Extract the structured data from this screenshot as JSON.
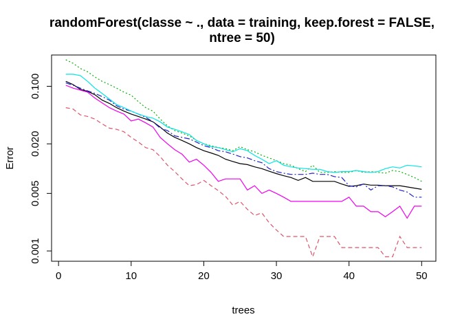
{
  "chart_data": {
    "type": "line",
    "title_lines": [
      "randomForest(classe ~ ., data = training, keep.forest = FALSE,",
      "ntree = 50)"
    ],
    "xlabel": "trees",
    "ylabel": "Error",
    "x_ticks": [
      0,
      10,
      20,
      30,
      40,
      50
    ],
    "x_tick_labels": [
      "0",
      "10",
      "20",
      "30",
      "40",
      "50"
    ],
    "y_ticks": [
      0.001,
      0.005,
      0.02,
      0.1
    ],
    "y_tick_labels": [
      "0.001",
      "0.005",
      "0.020",
      "0.100"
    ],
    "xlim": [
      -0.96,
      51.96
    ],
    "ylim": [
      0.00075,
      0.24
    ],
    "y_scale": "log",
    "grid": false,
    "legend": "none",
    "x": [
      1,
      2,
      3,
      4,
      5,
      6,
      7,
      8,
      9,
      10,
      11,
      12,
      13,
      14,
      15,
      16,
      17,
      18,
      19,
      20,
      21,
      22,
      23,
      24,
      25,
      26,
      27,
      28,
      29,
      30,
      31,
      32,
      33,
      34,
      35,
      36,
      37,
      38,
      39,
      40,
      41,
      42,
      43,
      44,
      45,
      46,
      47,
      48,
      49,
      50
    ],
    "series": [
      {
        "color": "#000000",
        "dash": "solid",
        "values": [
          0.115,
          0.105,
          0.092,
          0.087,
          0.079,
          0.068,
          0.062,
          0.055,
          0.05,
          0.046,
          0.043,
          0.04,
          0.037,
          0.032,
          0.027,
          0.024,
          0.022,
          0.02,
          0.018,
          0.0165,
          0.0155,
          0.0145,
          0.013,
          0.0122,
          0.0115,
          0.0112,
          0.0105,
          0.01,
          0.0093,
          0.0087,
          0.0082,
          0.0078,
          0.0072,
          0.0078,
          0.007,
          0.007,
          0.007,
          0.007,
          0.0065,
          0.0061,
          0.0062,
          0.0065,
          0.0063,
          0.0063,
          0.0062,
          0.0062,
          0.0062,
          0.006,
          0.0058,
          0.0056
        ]
      },
      {
        "color": "#df536b",
        "dash": "6,4",
        "values": [
          0.055,
          0.053,
          0.045,
          0.043,
          0.04,
          0.035,
          0.031,
          0.03,
          0.028,
          0.024,
          0.021,
          0.018,
          0.017,
          0.014,
          0.011,
          0.0092,
          0.0075,
          0.0062,
          0.0064,
          0.0072,
          0.0062,
          0.0054,
          0.0046,
          0.0036,
          0.004,
          0.0032,
          0.0027,
          0.0029,
          0.0022,
          0.0018,
          0.0015,
          0.0015,
          0.0015,
          0.0015,
          0.00085,
          0.0015,
          0.0015,
          0.0015,
          0.0011,
          0.0011,
          0.0011,
          0.0011,
          0.0011,
          0.0011,
          0.00085,
          0.00085,
          0.0015,
          0.0011,
          0.0011,
          0.0011
        ]
      },
      {
        "color": "#00b000",
        "dash": "2,3",
        "values": [
          0.21,
          0.19,
          0.165,
          0.15,
          0.13,
          0.115,
          0.105,
          0.095,
          0.085,
          0.078,
          0.065,
          0.055,
          0.05,
          0.04,
          0.033,
          0.029,
          0.027,
          0.025,
          0.022,
          0.02,
          0.019,
          0.018,
          0.0175,
          0.0165,
          0.0185,
          0.017,
          0.016,
          0.0145,
          0.0135,
          0.0125,
          0.0115,
          0.011,
          0.01,
          0.0092,
          0.011,
          0.009,
          0.009,
          0.0092,
          0.009,
          0.009,
          0.0095,
          0.009,
          0.0092,
          0.009,
          0.0088,
          0.0095,
          0.0092,
          0.0085,
          0.0078,
          0.007
        ]
      },
      {
        "color": "#2020cc",
        "dash": "8,3,2,3",
        "values": [
          0.11,
          0.103,
          0.095,
          0.088,
          0.082,
          0.075,
          0.068,
          0.058,
          0.053,
          0.05,
          0.046,
          0.042,
          0.037,
          0.031,
          0.029,
          0.025,
          0.024,
          0.023,
          0.021,
          0.019,
          0.018,
          0.0165,
          0.016,
          0.015,
          0.014,
          0.0135,
          0.0125,
          0.0118,
          0.01,
          0.0092,
          0.0088,
          0.0085,
          0.0085,
          0.0085,
          0.0088,
          0.0085,
          0.0085,
          0.008,
          0.0078,
          0.0062,
          0.006,
          0.0065,
          0.0055,
          0.0062,
          0.0062,
          0.006,
          0.0055,
          0.0052,
          0.0045,
          0.0045
        ]
      },
      {
        "color": "#00e5e5",
        "dash": "solid",
        "values": [
          0.14,
          0.14,
          0.135,
          0.115,
          0.095,
          0.082,
          0.07,
          0.06,
          0.055,
          0.05,
          0.046,
          0.043,
          0.041,
          0.037,
          0.032,
          0.03,
          0.028,
          0.026,
          0.022,
          0.02,
          0.0185,
          0.018,
          0.017,
          0.016,
          0.0175,
          0.0165,
          0.0145,
          0.013,
          0.0115,
          0.0125,
          0.011,
          0.0105,
          0.0102,
          0.01,
          0.0098,
          0.0098,
          0.0092,
          0.009,
          0.0092,
          0.0092,
          0.0095,
          0.0092,
          0.009,
          0.0092,
          0.01,
          0.0105,
          0.0102,
          0.011,
          0.0108,
          0.0105
        ]
      },
      {
        "color": "#ee00ee",
        "dash": "solid",
        "values": [
          0.103,
          0.095,
          0.09,
          0.085,
          0.072,
          0.063,
          0.055,
          0.05,
          0.046,
          0.038,
          0.04,
          0.036,
          0.032,
          0.024,
          0.02,
          0.017,
          0.015,
          0.012,
          0.013,
          0.011,
          0.009,
          0.007,
          0.0075,
          0.0075,
          0.0075,
          0.0055,
          0.0062,
          0.005,
          0.0055,
          0.005,
          0.0045,
          0.004,
          0.004,
          0.004,
          0.004,
          0.004,
          0.004,
          0.004,
          0.004,
          0.0045,
          0.0035,
          0.0035,
          0.003,
          0.003,
          0.0026,
          0.003,
          0.0035,
          0.0025,
          0.0035,
          0.0035
        ]
      }
    ]
  }
}
